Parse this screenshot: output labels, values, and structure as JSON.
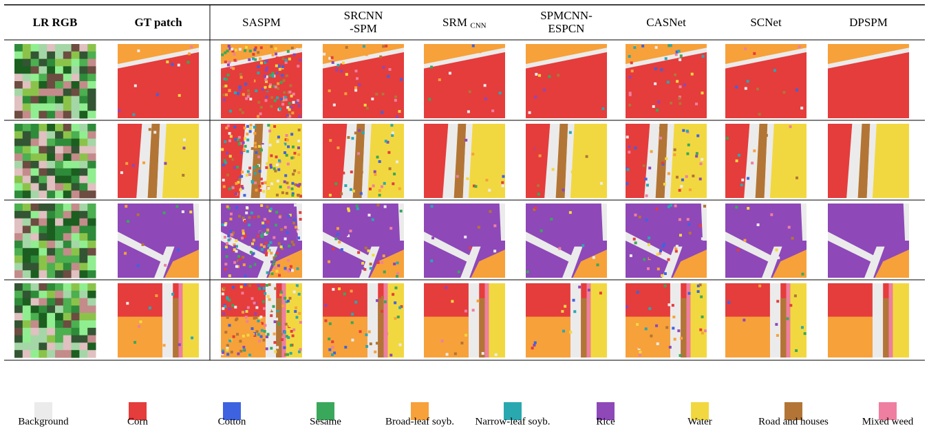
{
  "header": {
    "columns": [
      "LR RGB",
      "GT patch",
      "SASPM",
      {
        "lines": [
          "SRCNN",
          "-SPM"
        ]
      },
      {
        "text": "SRM",
        "sub": "CNN"
      },
      {
        "lines": [
          "SPMCNN-",
          "ESPCN"
        ]
      },
      "CASNet",
      "SCNet",
      "DPSPM"
    ]
  },
  "legend": [
    {
      "label": "Background",
      "color": "#ebebeb"
    },
    {
      "label": "Corn",
      "color": "#e53c3c"
    },
    {
      "label": "Cotton",
      "color": "#3e63e0"
    },
    {
      "label": "Sesame",
      "color": "#3aa85a"
    },
    {
      "label": "Broad-leaf soyb.",
      "color": "#f7a13a"
    },
    {
      "label": "Narrow-leaf soyb.",
      "color": "#2aa8b0"
    },
    {
      "label": "Rice",
      "color": "#8e48b8"
    },
    {
      "label": "Water",
      "color": "#f2d840"
    },
    {
      "label": "Road and houses",
      "color": "#b27536"
    },
    {
      "label": "Mixed weed",
      "color": "#ee7fa0"
    }
  ]
}
